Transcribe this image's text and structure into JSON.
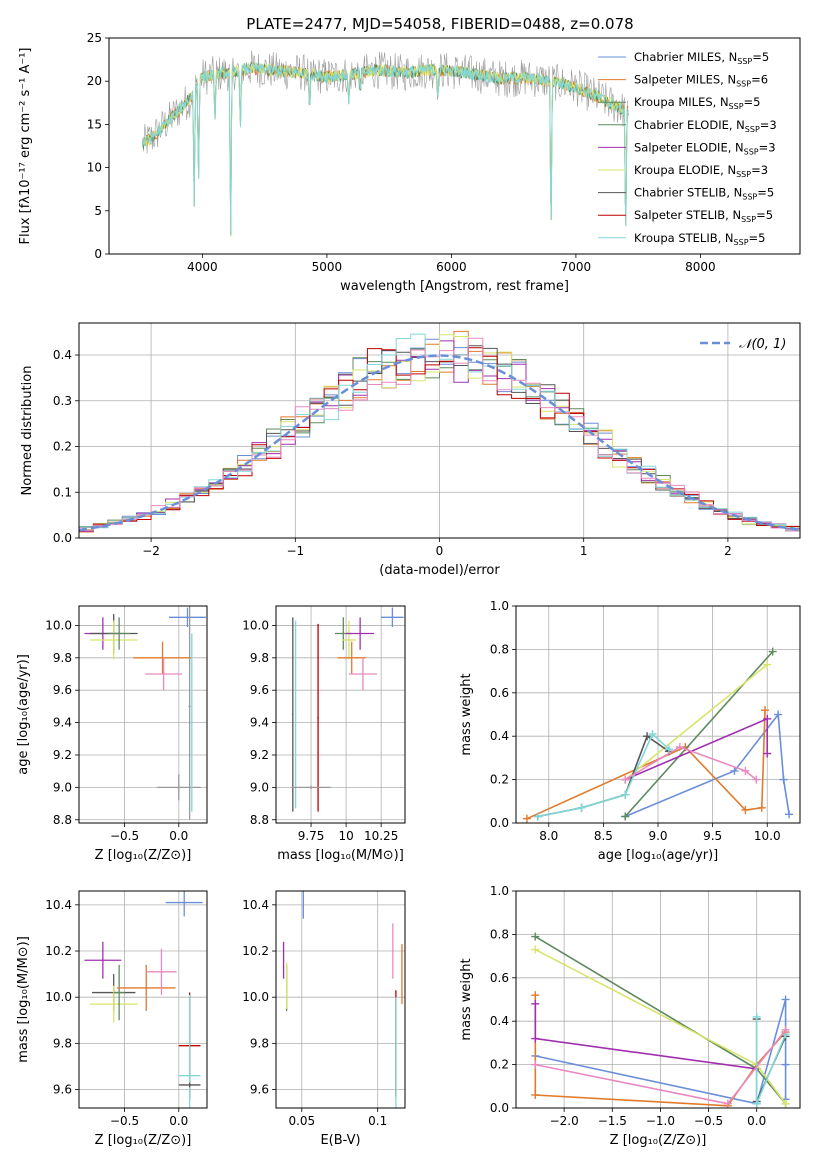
{
  "figure": {
    "title": "PLATE=2477, MJD=54058, FIBERID=0488, z=0.078"
  },
  "colors": {
    "c1": "#6a8fd8",
    "c2": "#e07b2d",
    "c3": "#5e8a5e",
    "c4": "#a030b0",
    "c5": "#d8e36a",
    "c6": "#555555",
    "c7": "#c00000",
    "c8": "#80d8d8",
    "c9": "#e88ac0",
    "c10": "#9a9a9a"
  },
  "chart_data": [
    {
      "id": "spectrum",
      "type": "line",
      "xlabel": "wavelength [Angstrom, rest frame]",
      "ylabel": "Flux [fλ10⁻¹⁷ erg cm⁻² s⁻¹ A⁻¹]",
      "xlim": [
        3250,
        8800
      ],
      "ylim": [
        0,
        25
      ],
      "xticks": [
        4000,
        5000,
        6000,
        7000,
        8000
      ],
      "yticks": [
        0,
        5,
        10,
        15,
        20,
        25
      ],
      "grid": false,
      "legend_position": "upper-right",
      "legend": [
        {
          "text": "Chabrier MILES, N",
          "sub": "SSP",
          "tail": "=5",
          "color": "c1"
        },
        {
          "text": "Salpeter MILES, N",
          "sub": "SSP",
          "tail": "=6",
          "color": "c2"
        },
        {
          "text": "Kroupa MILES, N",
          "sub": "SSP",
          "tail": "=5",
          "color": "c3"
        },
        {
          "text": "Chabrier ELODIE, N",
          "sub": "SSP",
          "tail": "=3",
          "color": "c3"
        },
        {
          "text": "Salpeter ELODIE, N",
          "sub": "SSP",
          "tail": "=3",
          "color": "c4"
        },
        {
          "text": "Kroupa ELODIE, N",
          "sub": "SSP",
          "tail": "=3",
          "color": "c5"
        },
        {
          "text": "Chabrier STELIB, N",
          "sub": "SSP",
          "tail": "=5",
          "color": "c6"
        },
        {
          "text": "Salpeter STELIB, N",
          "sub": "SSP",
          "tail": "=5",
          "color": "c7"
        },
        {
          "text": "Kroupa STELIB, N",
          "sub": "SSP",
          "tail": "=5",
          "color": "c8"
        }
      ],
      "continuum": [
        [
          3500,
          12.5
        ],
        [
          3600,
          13.5
        ],
        [
          3700,
          15
        ],
        [
          3800,
          16.5
        ],
        [
          3900,
          18
        ],
        [
          4000,
          20.5
        ],
        [
          4200,
          21
        ],
        [
          4400,
          21.5
        ],
        [
          4600,
          21.2
        ],
        [
          4800,
          21
        ],
        [
          5000,
          20.5
        ],
        [
          5200,
          20.8
        ],
        [
          5400,
          21.3
        ],
        [
          5600,
          21
        ],
        [
          5800,
          21.3
        ],
        [
          6000,
          21.2
        ],
        [
          6200,
          20.8
        ],
        [
          6400,
          20.3
        ],
        [
          6600,
          20.4
        ],
        [
          6800,
          20
        ],
        [
          7000,
          19.3
        ],
        [
          7200,
          18
        ],
        [
          7400,
          16.5
        ]
      ],
      "absorption_lines": [
        {
          "x": 3934,
          "y": 5.5
        },
        {
          "x": 3969,
          "y": 7.5
        },
        {
          "x": 4101,
          "y": 15
        },
        {
          "x": 4227,
          "y": 0
        },
        {
          "x": 4305,
          "y": 14
        },
        {
          "x": 4861,
          "y": 16
        },
        {
          "x": 5175,
          "y": 17
        },
        {
          "x": 5270,
          "y": 18.5
        },
        {
          "x": 5892,
          "y": 17.5
        },
        {
          "x": 6800,
          "y": 0
        },
        {
          "x": 7400,
          "y": 0
        }
      ]
    },
    {
      "id": "residuals",
      "type": "histogram",
      "xlabel": "(data-model)/error",
      "ylabel": "Normed distribution",
      "xlim": [
        -2.5,
        2.5
      ],
      "ylim": [
        0,
        0.47
      ],
      "xticks": [
        -2,
        -1,
        0,
        1,
        2
      ],
      "yticks": [
        0.0,
        0.1,
        0.2,
        0.3,
        0.4
      ],
      "grid": true,
      "legend": [
        {
          "text": "𝒩(0, 1)",
          "color": "c1"
        }
      ],
      "bin_width": 0.1
    },
    {
      "id": "age_vs_Z",
      "type": "errorbar",
      "xlabel": "Z [log₁₀(Z/Z⊙)]",
      "ylabel": "age  [log₁₀(age/yr)]",
      "xlim": [
        -0.92,
        0.26
      ],
      "ylim": [
        8.78,
        10.12
      ],
      "xticks": [
        -0.5,
        0.0
      ],
      "yticks": [
        8.8,
        9.0,
        9.2,
        9.4,
        9.6,
        9.8,
        10.0
      ],
      "grid": true,
      "points": [
        {
          "x": -0.7,
          "y": 9.95,
          "xerr": 0.17,
          "yerr": 0.1,
          "color": "c4"
        },
        {
          "x": -0.6,
          "y": 9.95,
          "xerr": 0.22,
          "yerr": 0.12,
          "color": "c6"
        },
        {
          "x": -0.6,
          "y": 9.91,
          "xerr": 0.22,
          "yerr": 0.12,
          "color": "c5"
        },
        {
          "x": -0.55,
          "y": 9.95,
          "xerr": 0.1,
          "yerr": 0.1,
          "color": "c3"
        },
        {
          "x": -0.15,
          "y": 9.8,
          "xerr": 0.27,
          "yerr": 0.1,
          "color": "c2"
        },
        {
          "x": -0.14,
          "y": 9.7,
          "xerr": 0.17,
          "yerr": 0.1,
          "color": "c9"
        },
        {
          "x": 0.0,
          "y": 9.0,
          "xerr": 0.2,
          "yerr": 0.08,
          "color": "c10"
        },
        {
          "x": 0.08,
          "y": 10.05,
          "xerr": 0.17,
          "yerr": 0.06,
          "color": "c1"
        },
        {
          "x": 0.1,
          "y": 9.5,
          "xerr": 0.01,
          "yerr": 0.7,
          "color": "c10"
        },
        {
          "x": 0.12,
          "y": 9.4,
          "xerr": 0.01,
          "yerr": 0.55,
          "color": "c8"
        }
      ]
    },
    {
      "id": "age_vs_mass",
      "type": "errorbar",
      "xlabel": "mass [log₁₀(M/M⊙)]",
      "ylabel": "",
      "xlim": [
        9.5,
        10.42
      ],
      "ylim": [
        8.78,
        10.12
      ],
      "xticks": [
        9.75,
        10.0,
        10.25
      ],
      "yticks": [
        8.8,
        9.0,
        9.2,
        9.4,
        9.6,
        9.8,
        10.0
      ],
      "grid": true,
      "points": [
        {
          "x": 9.62,
          "y": 9.45,
          "xerr": 0.005,
          "yerr": 0.6,
          "color": "c6"
        },
        {
          "x": 9.64,
          "y": 9.45,
          "xerr": 0.005,
          "yerr": 0.58,
          "color": "c8"
        },
        {
          "x": 9.8,
          "y": 9.43,
          "xerr": 0.005,
          "yerr": 0.58,
          "color": "c7"
        },
        {
          "x": 9.75,
          "y": 9.0,
          "xerr": 0.14,
          "yerr": 0.01,
          "color": "c10"
        },
        {
          "x": 9.98,
          "y": 9.95,
          "xerr": 0.06,
          "yerr": 0.1,
          "color": "c3"
        },
        {
          "x": 10.02,
          "y": 9.91,
          "xerr": 0.05,
          "yerr": 0.12,
          "color": "c5"
        },
        {
          "x": 10.04,
          "y": 9.8,
          "xerr": 0.1,
          "yerr": 0.1,
          "color": "c2"
        },
        {
          "x": 10.1,
          "y": 9.95,
          "xerr": 0.1,
          "yerr": 0.1,
          "color": "c4"
        },
        {
          "x": 10.12,
          "y": 9.7,
          "xerr": 0.1,
          "yerr": 0.1,
          "color": "c9"
        },
        {
          "x": 10.33,
          "y": 10.05,
          "xerr": 0.08,
          "yerr": 0.06,
          "color": "c1"
        }
      ]
    },
    {
      "id": "mw_vs_age",
      "type": "line",
      "xlabel": "age  [log₁₀(age/yr)]",
      "ylabel": "mass weight",
      "xlim": [
        7.7,
        10.3
      ],
      "ylim": [
        0,
        1.0
      ],
      "xticks": [
        8.0,
        8.5,
        9.0,
        9.5,
        10.0
      ],
      "yticks": [
        0.0,
        0.2,
        0.4,
        0.6,
        0.8,
        1.0
      ],
      "grid": true,
      "series": [
        {
          "color": "c1",
          "points": [
            [
              8.7,
              0.03
            ],
            [
              9.7,
              0.24
            ],
            [
              10.1,
              0.5
            ],
            [
              10.15,
              0.2
            ],
            [
              10.2,
              0.04
            ]
          ]
        },
        {
          "color": "c2",
          "points": [
            [
              7.8,
              0.02
            ],
            [
              9.25,
              0.35
            ],
            [
              9.8,
              0.06
            ],
            [
              9.95,
              0.07
            ],
            [
              9.98,
              0.52
            ]
          ]
        },
        {
          "color": "c3",
          "points": [
            [
              8.7,
              0.03
            ],
            [
              10.05,
              0.79
            ]
          ]
        },
        {
          "color": "c4",
          "points": [
            [
              8.7,
              0.2
            ],
            [
              10.0,
              0.48
            ],
            [
              10.0,
              0.32
            ]
          ]
        },
        {
          "color": "c5",
          "points": [
            [
              8.7,
              0.2
            ],
            [
              10.0,
              0.73
            ]
          ]
        },
        {
          "color": "c6",
          "points": [
            [
              7.9,
              0.03
            ],
            [
              8.3,
              0.07
            ],
            [
              8.7,
              0.13
            ],
            [
              8.9,
              0.4
            ],
            [
              9.1,
              0.33
            ]
          ]
        },
        {
          "color": "c8",
          "points": [
            [
              7.9,
              0.03
            ],
            [
              8.3,
              0.07
            ],
            [
              8.7,
              0.13
            ],
            [
              8.95,
              0.41
            ],
            [
              9.1,
              0.34
            ]
          ]
        },
        {
          "color": "c9",
          "points": [
            [
              8.7,
              0.2
            ],
            [
              9.2,
              0.35
            ],
            [
              9.8,
              0.24
            ],
            [
              9.9,
              0.2
            ]
          ]
        }
      ]
    },
    {
      "id": "mass_vs_Z",
      "type": "errorbar",
      "xlabel": "Z [log₁₀(Z/Z⊙)]",
      "ylabel": "mass [log₁₀(M/M⊙)]",
      "xlim": [
        -0.92,
        0.26
      ],
      "ylim": [
        9.52,
        10.46
      ],
      "xticks": [
        -0.5,
        0.0
      ],
      "yticks": [
        9.6,
        9.8,
        10.0,
        10.2,
        10.4
      ],
      "grid": true,
      "points": [
        {
          "x": -0.7,
          "y": 10.16,
          "xerr": 0.17,
          "yerr": 0.08,
          "color": "c4"
        },
        {
          "x": -0.6,
          "y": 10.02,
          "xerr": 0.2,
          "yerr": 0.08,
          "color": "c6"
        },
        {
          "x": -0.6,
          "y": 9.97,
          "xerr": 0.22,
          "yerr": 0.08,
          "color": "c5"
        },
        {
          "x": -0.55,
          "y": 10.02,
          "xerr": 0.05,
          "yerr": 0.12,
          "color": "c3"
        },
        {
          "x": -0.3,
          "y": 10.04,
          "xerr": 0.27,
          "yerr": 0.1,
          "color": "c2"
        },
        {
          "x": -0.16,
          "y": 10.11,
          "xerr": 0.14,
          "yerr": 0.1,
          "color": "c9"
        },
        {
          "x": 0.05,
          "y": 10.41,
          "xerr": 0.17,
          "yerr": 0.06,
          "color": "c1"
        },
        {
          "x": 0.1,
          "y": 9.79,
          "xerr": 0.1,
          "yerr": 0.23,
          "color": "c7"
        },
        {
          "x": 0.1,
          "y": 9.66,
          "xerr": 0.1,
          "yerr": 0.35,
          "color": "c8"
        },
        {
          "x": 0.1,
          "y": 9.62,
          "xerr": 0.1,
          "yerr": 0.01,
          "color": "c6"
        }
      ]
    },
    {
      "id": "mass_vs_ebv",
      "type": "errorbar",
      "xlabel": "E(B-V)",
      "ylabel": "",
      "xlim": [
        0.033,
        0.118
      ],
      "ylim": [
        9.52,
        10.46
      ],
      "xticks": [
        0.05,
        0.1
      ],
      "yticks": [
        9.6,
        9.8,
        10.0,
        10.2,
        10.4
      ],
      "grid": true,
      "points": [
        {
          "x": 0.038,
          "y": 10.16,
          "xerr": 0.0003,
          "yerr": 0.08,
          "color": "c4"
        },
        {
          "x": 0.04,
          "y": 10.04,
          "xerr": 0.0003,
          "yerr": 0.1,
          "color": "c3"
        },
        {
          "x": 0.04,
          "y": 10.05,
          "xerr": 0.0003,
          "yerr": 0.1,
          "color": "c5"
        },
        {
          "x": 0.051,
          "y": 10.4,
          "xerr": 0.0003,
          "yerr": 0.06,
          "color": "c1"
        },
        {
          "x": 0.11,
          "y": 10.2,
          "xerr": 0.0003,
          "yerr": 0.12,
          "color": "c9"
        },
        {
          "x": 0.112,
          "y": 9.8,
          "xerr": 0.0003,
          "yerr": 0.23,
          "color": "c7"
        },
        {
          "x": 0.112,
          "y": 9.75,
          "xerr": 0.0003,
          "yerr": 0.25,
          "color": "c8"
        },
        {
          "x": 0.116,
          "y": 10.1,
          "xerr": 0.0003,
          "yerr": 0.13,
          "color": "c2"
        }
      ]
    },
    {
      "id": "mw_vs_Z",
      "type": "line",
      "xlabel": "Z [log₁₀(Z/Z⊙)]",
      "ylabel": "mass weight",
      "xlim": [
        -2.5,
        0.45
      ],
      "ylim": [
        0,
        1.0
      ],
      "xticks": [
        -2.0,
        -1.5,
        -1.0,
        -0.5,
        0.0
      ],
      "yticks": [
        0.0,
        0.2,
        0.4,
        0.6,
        0.8,
        1.0
      ],
      "grid": true,
      "series": [
        {
          "color": "c1",
          "points": [
            [
              -2.3,
              0.24
            ],
            [
              0.0,
              0.02
            ],
            [
              0.3,
              0.5
            ],
            [
              0.3,
              0.2
            ],
            [
              0.3,
              0.04
            ]
          ]
        },
        {
          "color": "c2",
          "points": [
            [
              -2.3,
              0.52
            ],
            [
              -2.3,
              0.06
            ],
            [
              -0.3,
              0.01
            ],
            [
              0.0,
              0.2
            ],
            [
              0.3,
              0.35
            ]
          ]
        },
        {
          "color": "c3",
          "points": [
            [
              -2.3,
              0.79
            ],
            [
              0.0,
              0.18
            ],
            [
              0.3,
              0.02
            ]
          ]
        },
        {
          "color": "c4",
          "points": [
            [
              -2.3,
              0.48
            ],
            [
              -2.3,
              0.32
            ],
            [
              0.0,
              0.18
            ]
          ]
        },
        {
          "color": "c5",
          "points": [
            [
              -2.3,
              0.73
            ],
            [
              0.0,
              0.2
            ],
            [
              0.3,
              0.02
            ]
          ]
        },
        {
          "color": "c6",
          "points": [
            [
              0.0,
              0.41
            ],
            [
              0.0,
              0.03
            ],
            [
              0.3,
              0.33
            ]
          ]
        },
        {
          "color": "c8",
          "points": [
            [
              0.0,
              0.42
            ],
            [
              0.0,
              0.02
            ],
            [
              0.3,
              0.34
            ]
          ]
        },
        {
          "color": "c9",
          "points": [
            [
              -2.3,
              0.2
            ],
            [
              -0.3,
              0.02
            ],
            [
              0.3,
              0.36
            ]
          ]
        }
      ]
    }
  ]
}
